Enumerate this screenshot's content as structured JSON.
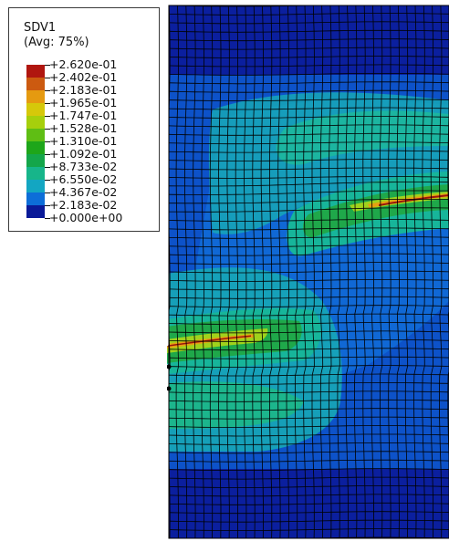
{
  "legend": {
    "title": "SDV1",
    "subtitle": "(Avg: 75%)",
    "labels": [
      "+2.620e-01",
      "+2.402e-01",
      "+2.183e-01",
      "+1.965e-01",
      "+1.747e-01",
      "+1.528e-01",
      "+1.310e-01",
      "+1.092e-01",
      "+8.733e-02",
      "+6.550e-02",
      "+4.367e-02",
      "+2.183e-02",
      "+0.000e+00"
    ],
    "colors": [
      "#b0160f",
      "#cc5a10",
      "#e59a10",
      "#d6c80a",
      "#a6cf0c",
      "#5fbe14",
      "#1ea61a",
      "#14a64a",
      "#17b58a",
      "#13a6c2",
      "#0d6ed8",
      "#0a3fc0",
      "#0a1a98"
    ]
  },
  "colors": {
    "band_dark": "#0b1f9e",
    "band_mid": "#0d52c9",
    "band_teal": "#17b8a8",
    "band_green": "#1fa84a",
    "band_lime": "#9fd21a",
    "band_orange": "#f0a010",
    "band_red": "#a5120e",
    "mesh_line": "#000000"
  }
}
